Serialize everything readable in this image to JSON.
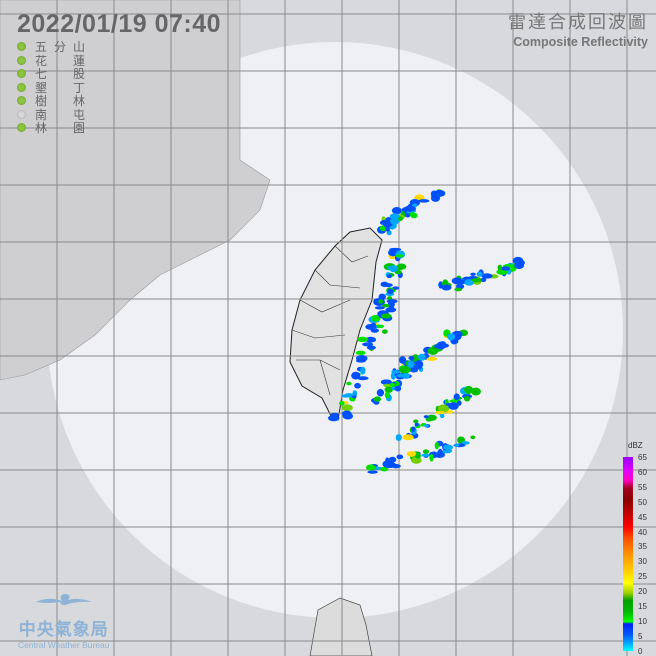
{
  "header": {
    "datetime": "2022/01/19  07:40"
  },
  "product": {
    "title_zh": "雷達合成回波圖",
    "title_en": "Composite Reflectivity"
  },
  "stations": [
    {
      "name": "五分山",
      "status": "online",
      "color": "#8cc63f"
    },
    {
      "name": "花蓮",
      "status": "online",
      "color": "#8cc63f"
    },
    {
      "name": "七股",
      "status": "online",
      "color": "#8cc63f"
    },
    {
      "name": "墾丁",
      "status": "online",
      "color": "#8cc63f"
    },
    {
      "name": "樹林",
      "status": "online",
      "color": "#8cc63f"
    },
    {
      "name": "南屯",
      "status": "offline",
      "color": "#d8d8d8"
    },
    {
      "name": "林園",
      "status": "online",
      "color": "#8cc63f"
    }
  ],
  "legend": {
    "unit": "dBZ",
    "ticks": [
      "65",
      "60",
      "55",
      "50",
      "45",
      "40",
      "35",
      "30",
      "25",
      "20",
      "15",
      "10",
      "5",
      "0"
    ]
  },
  "logo": {
    "name_zh": "中央氣象局",
    "name_en": "Central Weather Bureau"
  },
  "colors": {
    "background": "#d8d9dc",
    "coverage": "#eff0f3",
    "land": "#dcdcdc",
    "grid": "#888888"
  }
}
